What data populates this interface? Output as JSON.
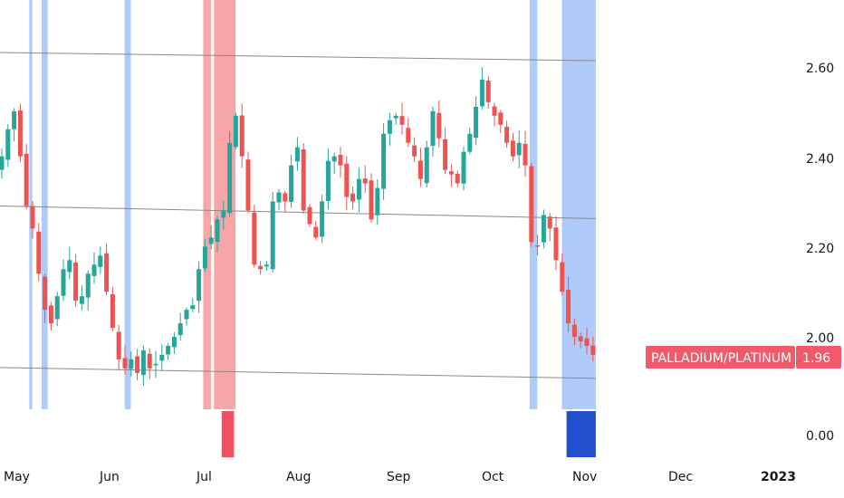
{
  "colors": {
    "up": "#26a69a",
    "down": "#ef5350",
    "band_blue": "#aecbfa",
    "band_red": "#f8a5a8",
    "hist_blue": "#2250cc",
    "hist_red": "#f05060",
    "channel_line": "#8a8a8a",
    "tag_bg": "#f05a6a"
  },
  "chart_data": {
    "type": "candlestick",
    "symbol_tag": "PALLADIUM/PLATINUM",
    "last_value_label": "1.96",
    "y_ticks": [
      "2.60",
      "2.40",
      "2.20",
      "2.00"
    ],
    "lower_pane_tick": "0.00",
    "x_ticks": [
      "May",
      "Jun",
      "Jul",
      "Aug",
      "Sep",
      "Oct",
      "Nov",
      "Dec",
      "2023"
    ],
    "x_range_days": [
      0,
      252
    ],
    "ylim": [
      1.87,
      2.76
    ],
    "blue_bands_days": [
      [
        9.5,
        10.5
      ],
      [
        13.5,
        15.5
      ],
      [
        40.5,
        42.5
      ],
      [
        172,
        174.5
      ],
      [
        182.5,
        193.5
      ]
    ],
    "red_bands_days": [
      [
        66,
        68.5
      ],
      [
        69.5,
        76.5
      ]
    ],
    "lower_pane_bars": [
      {
        "day_start": 72,
        "day_end": 76,
        "color": "red"
      },
      {
        "day_start": 184,
        "day_end": 193.5,
        "color": "blue"
      }
    ],
    "channel_lines": [
      {
        "x0": 0,
        "y0": 2.63,
        "x1": 193.5,
        "y1": 2.612
      },
      {
        "x0": 0,
        "y0": 2.29,
        "x1": 193.5,
        "y1": 2.262
      },
      {
        "x0": 0,
        "y0": 1.932,
        "x1": 193.5,
        "y1": 1.908
      }
    ],
    "closes": [
      {
        "d": 0,
        "c": 2.4
      },
      {
        "d": 2,
        "c": 2.46
      },
      {
        "d": 4,
        "c": 2.5
      },
      {
        "d": 6,
        "c": 2.4
      },
      {
        "d": 8,
        "c": 2.29
      },
      {
        "d": 10,
        "c": 2.24
      },
      {
        "d": 12,
        "c": 2.14
      },
      {
        "d": 14,
        "c": 2.06
      },
      {
        "d": 16,
        "c": 2.03
      },
      {
        "d": 18,
        "c": 2.09
      },
      {
        "d": 20,
        "c": 2.15
      },
      {
        "d": 22,
        "c": 2.17
      },
      {
        "d": 24,
        "c": 2.08
      },
      {
        "d": 26,
        "c": 2.09
      },
      {
        "d": 28,
        "c": 2.14
      },
      {
        "d": 30,
        "c": 2.16
      },
      {
        "d": 32,
        "c": 2.18
      },
      {
        "d": 34,
        "c": 2.1
      },
      {
        "d": 36,
        "c": 2.02
      },
      {
        "d": 38,
        "c": 1.95
      },
      {
        "d": 40,
        "c": 1.93
      },
      {
        "d": 42,
        "c": 1.95
      },
      {
        "d": 44,
        "c": 1.92
      },
      {
        "d": 46,
        "c": 1.97
      },
      {
        "d": 48,
        "c": 1.93
      },
      {
        "d": 50,
        "c": 1.94
      },
      {
        "d": 52,
        "c": 1.96
      },
      {
        "d": 54,
        "c": 1.98
      },
      {
        "d": 56,
        "c": 2.0
      },
      {
        "d": 58,
        "c": 2.03
      },
      {
        "d": 60,
        "c": 2.06
      },
      {
        "d": 62,
        "c": 2.07
      },
      {
        "d": 64,
        "c": 2.15
      },
      {
        "d": 66,
        "c": 2.2
      },
      {
        "d": 68,
        "c": 2.22
      },
      {
        "d": 70,
        "c": 2.26
      },
      {
        "d": 72,
        "c": 2.28
      },
      {
        "d": 74,
        "c": 2.43
      },
      {
        "d": 76,
        "c": 2.49
      },
      {
        "d": 78,
        "c": 2.4
      },
      {
        "d": 80,
        "c": 2.28
      },
      {
        "d": 82,
        "c": 2.16
      },
      {
        "d": 84,
        "c": 2.15
      },
      {
        "d": 86,
        "c": 2.16
      },
      {
        "d": 88,
        "c": 2.3
      },
      {
        "d": 90,
        "c": 2.32
      },
      {
        "d": 92,
        "c": 2.3
      },
      {
        "d": 94,
        "c": 2.38
      },
      {
        "d": 96,
        "c": 2.42
      },
      {
        "d": 98,
        "c": 2.28
      },
      {
        "d": 100,
        "c": 2.25
      },
      {
        "d": 102,
        "c": 2.22
      },
      {
        "d": 104,
        "c": 2.3
      },
      {
        "d": 106,
        "c": 2.39
      },
      {
        "d": 108,
        "c": 2.4
      },
      {
        "d": 110,
        "c": 2.38
      },
      {
        "d": 112,
        "c": 2.31
      },
      {
        "d": 114,
        "c": 2.3
      },
      {
        "d": 116,
        "c": 2.35
      },
      {
        "d": 118,
        "c": 2.34
      },
      {
        "d": 120,
        "c": 2.26
      },
      {
        "d": 122,
        "c": 2.33
      },
      {
        "d": 124,
        "c": 2.45
      },
      {
        "d": 126,
        "c": 2.48
      },
      {
        "d": 128,
        "c": 2.49
      },
      {
        "d": 130,
        "c": 2.47
      },
      {
        "d": 132,
        "c": 2.43
      },
      {
        "d": 134,
        "c": 2.4
      },
      {
        "d": 136,
        "c": 2.35
      },
      {
        "d": 138,
        "c": 2.42
      },
      {
        "d": 140,
        "c": 2.5
      },
      {
        "d": 142,
        "c": 2.44
      },
      {
        "d": 144,
        "c": 2.37
      },
      {
        "d": 146,
        "c": 2.36
      },
      {
        "d": 148,
        "c": 2.34
      },
      {
        "d": 150,
        "c": 2.41
      },
      {
        "d": 152,
        "c": 2.45
      },
      {
        "d": 154,
        "c": 2.51
      },
      {
        "d": 156,
        "c": 2.57
      },
      {
        "d": 158,
        "c": 2.52
      },
      {
        "d": 160,
        "c": 2.49
      },
      {
        "d": 162,
        "c": 2.47
      },
      {
        "d": 164,
        "c": 2.43
      },
      {
        "d": 166,
        "c": 2.4
      },
      {
        "d": 168,
        "c": 2.43
      },
      {
        "d": 170,
        "c": 2.38
      },
      {
        "d": 172,
        "c": 2.21
      },
      {
        "d": 174,
        "c": 2.2
      },
      {
        "d": 176,
        "c": 2.27
      },
      {
        "d": 178,
        "c": 2.24
      },
      {
        "d": 180,
        "c": 2.17
      },
      {
        "d": 182,
        "c": 2.1
      },
      {
        "d": 184,
        "c": 2.03
      },
      {
        "d": 186,
        "c": 2.0
      },
      {
        "d": 188,
        "c": 1.99
      },
      {
        "d": 190,
        "c": 1.98
      },
      {
        "d": 192,
        "c": 1.96
      }
    ]
  }
}
